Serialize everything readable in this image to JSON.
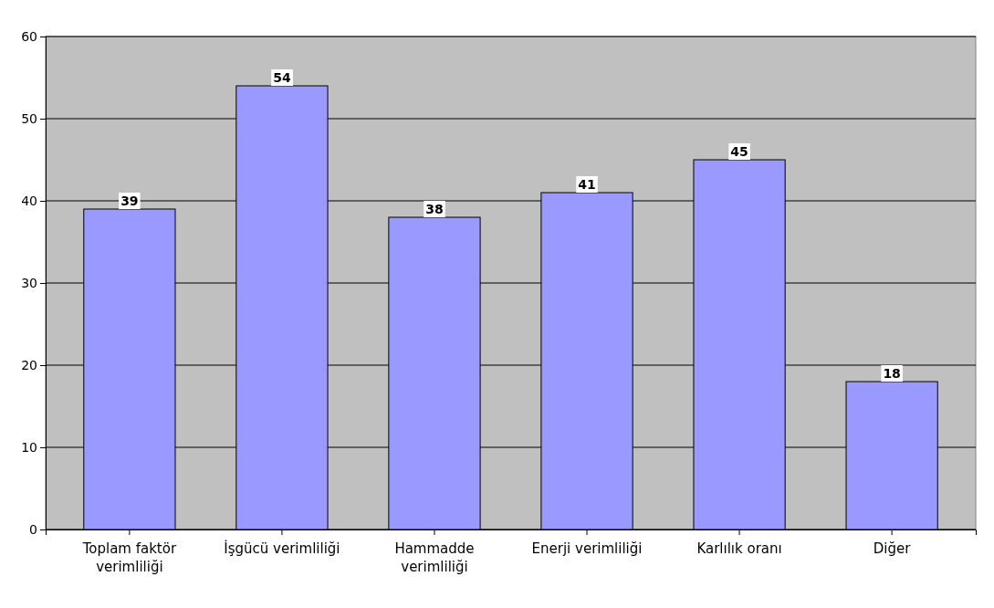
{
  "chart_data": {
    "type": "bar",
    "categories": [
      "Toplam faktör verimliliği",
      "İşgücü verimliliği",
      "Hammadde verimliliği",
      "Enerji verimliliği",
      "Karlılık oranı",
      "Diğer"
    ],
    "values": [
      39,
      54,
      38,
      41,
      45,
      18
    ],
    "color": "#9999ff",
    "ylim": [
      0,
      60
    ],
    "yticks": [
      0,
      10,
      20,
      30,
      40,
      50,
      60
    ],
    "grid": "y",
    "data_labels": true
  }
}
